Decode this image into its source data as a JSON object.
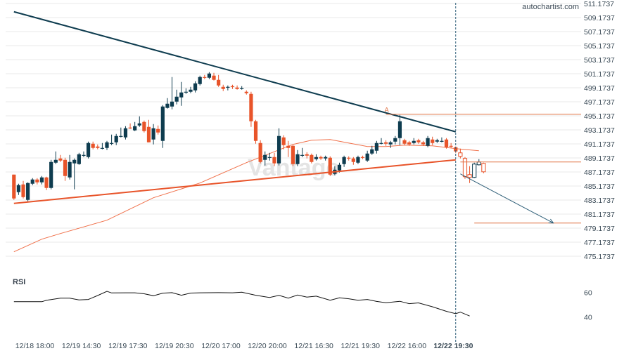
{
  "brand": "autochartist.com",
  "watermark": "Vantage",
  "rsi_label": "RSI",
  "colors": {
    "bull": "#0e3c4f",
    "bear": "#e8542a",
    "trend_upper": "#0e3c4f",
    "trend_lower": "#e8542a",
    "ma": "#f0704a",
    "level": "#e07040",
    "forecast": "#2f5f78",
    "rsi_line": "#111111",
    "axis_text": "#3a4a56",
    "grid": "#e9e9e9"
  },
  "chart_data": [
    {
      "type": "candlestick",
      "title": "",
      "ylim": [
        473.1737,
        511.1737
      ],
      "y_ticks": [
        "511.1737",
        "509.1737",
        "507.1737",
        "505.1737",
        "503.1737",
        "501.1737",
        "499.1737",
        "497.1737",
        "495.1737",
        "493.1737",
        "491.1737",
        "489.1737",
        "487.1737",
        "485.1737",
        "483.1737",
        "481.1737",
        "479.1737",
        "477.1737",
        "475.1737"
      ],
      "x_ticks": [
        {
          "label": "12/18 18:00",
          "bar": 4.5
        },
        {
          "label": "12/19 14:30",
          "bar": 14.5
        },
        {
          "label": "12/19 17:30",
          "bar": 24.5
        },
        {
          "label": "12/19 20:30",
          "bar": 34.5
        },
        {
          "label": "12/20 17:00",
          "bar": 44.5
        },
        {
          "label": "12/20 20:00",
          "bar": 54.5
        },
        {
          "label": "12/21 16:30",
          "bar": 64.5
        },
        {
          "label": "12/21 19:30",
          "bar": 74.5
        },
        {
          "label": "12/22 16:00",
          "bar": 84.5
        },
        {
          "label": "12/22 19:30",
          "bar": 94.5,
          "bold": true
        }
      ],
      "candles": [
        [
          486.8,
          483.4,
          486.8,
          483.2
        ],
        [
          484.3,
          485.3,
          485.5,
          483.9
        ],
        [
          485.4,
          483.6,
          485.9,
          483.4
        ],
        [
          483.2,
          485.6,
          485.7,
          483.0
        ],
        [
          485.5,
          486.1,
          486.3,
          485.3
        ],
        [
          486.1,
          485.7,
          486.3,
          485.4
        ],
        [
          485.7,
          486.4,
          486.6,
          485.4
        ],
        [
          486.4,
          484.9,
          486.5,
          484.6
        ],
        [
          484.9,
          488.6,
          488.9,
          484.7
        ],
        [
          488.5,
          488.9,
          490.1,
          488.3
        ],
        [
          489.1,
          488.8,
          489.6,
          488.6
        ],
        [
          488.9,
          486.6,
          489.2,
          485.9
        ],
        [
          486.4,
          488.6,
          489.6,
          486.1
        ],
        [
          488.4,
          488.9,
          489.1,
          484.7
        ],
        [
          488.3,
          489.7,
          489.9,
          488.2
        ],
        [
          489.6,
          489.6,
          490.1,
          489.3
        ],
        [
          489.3,
          491.3,
          491.5,
          489.1
        ],
        [
          491.2,
          490.6,
          491.5,
          490.4
        ],
        [
          490.8,
          490.6,
          491.1,
          490.4
        ],
        [
          490.6,
          490.6,
          491.3,
          490.4
        ],
        [
          490.6,
          491.4,
          491.6,
          490.3
        ],
        [
          491.2,
          491.3,
          492.5,
          491.0
        ],
        [
          491.4,
          492.3,
          492.6,
          491.0
        ],
        [
          492.3,
          492.3,
          493.5,
          492.1
        ],
        [
          492.1,
          493.4,
          493.7,
          491.8
        ],
        [
          493.5,
          493.4,
          494.1,
          493.3
        ],
        [
          493.1,
          493.7,
          494.3,
          493.0
        ],
        [
          493.8,
          494.1,
          495.1,
          493.6
        ],
        [
          494.3,
          493.0,
          494.5,
          492.8
        ],
        [
          493.6,
          491.4,
          494.6,
          491.4
        ],
        [
          491.8,
          493.4,
          494.0,
          491.1
        ],
        [
          493.3,
          492.8,
          493.8,
          492.5
        ],
        [
          491.6,
          496.5,
          496.7,
          490.6
        ],
        [
          496.3,
          496.9,
          497.7,
          496.2
        ],
        [
          496.5,
          497.2,
          500.7,
          496.1
        ],
        [
          497.2,
          497.9,
          498.9,
          496.8
        ],
        [
          497.8,
          498.5,
          500.0,
          496.6
        ],
        [
          498.6,
          498.6,
          499.1,
          498.3
        ],
        [
          498.6,
          498.9,
          499.3,
          498.4
        ],
        [
          498.8,
          499.8,
          500.1,
          498.5
        ],
        [
          499.7,
          500.7,
          500.9,
          499.5
        ],
        [
          500.7,
          500.6,
          501.0,
          500.4
        ],
        [
          500.6,
          501.2,
          501.4,
          500.4
        ],
        [
          500.9,
          500.3,
          501.3,
          500.2
        ],
        [
          500.3,
          499.5,
          501.0,
          499.3
        ],
        [
          499.3,
          499.0,
          499.6,
          498.7
        ],
        [
          499.3,
          499.3,
          499.5,
          498.8
        ],
        [
          499.4,
          499.3,
          499.6,
          499.0
        ],
        [
          499.2,
          499.0,
          499.5,
          498.9
        ],
        [
          499.1,
          499.1,
          499.4,
          498.9
        ],
        [
          498.6,
          498.4,
          498.8,
          498.2
        ],
        [
          498.3,
          494.4,
          498.6,
          493.6
        ],
        [
          494.4,
          491.6,
          494.6,
          491.2
        ],
        [
          491.3,
          488.6,
          491.7,
          488.4
        ],
        [
          488.9,
          489.6,
          490.1,
          488.1
        ],
        [
          489.3,
          489.3,
          489.9,
          488.8
        ],
        [
          489.3,
          488.4,
          489.9,
          488.0
        ],
        [
          488.4,
          492.3,
          493.4,
          488.1
        ],
        [
          492.1,
          491.0,
          492.4,
          490.4
        ],
        [
          490.9,
          490.6,
          491.6,
          489.3
        ],
        [
          490.9,
          488.3,
          491.0,
          488.0
        ],
        [
          488.3,
          489.7,
          490.3,
          488.0
        ],
        [
          489.6,
          489.6,
          490.6,
          489.3
        ],
        [
          489.7,
          489.5,
          490.0,
          489.1
        ],
        [
          489.6,
          488.6,
          489.8,
          488.4
        ],
        [
          489.0,
          489.3,
          489.7,
          488.8
        ],
        [
          489.3,
          489.1,
          489.5,
          488.9
        ],
        [
          489.1,
          489.3,
          489.5,
          488.8
        ],
        [
          489.2,
          486.8,
          489.4,
          486.6
        ],
        [
          486.9,
          487.5,
          488.0,
          486.7
        ],
        [
          487.4,
          488.2,
          488.5,
          487.1
        ],
        [
          488.3,
          489.3,
          489.5,
          487.9
        ],
        [
          489.2,
          489.1,
          489.4,
          488.8
        ],
        [
          489.1,
          488.6,
          489.3,
          488.2
        ],
        [
          488.5,
          489.3,
          489.5,
          488.3
        ],
        [
          489.3,
          489.2,
          489.5,
          489.0
        ],
        [
          488.8,
          489.8,
          490.2,
          488.6
        ],
        [
          489.8,
          490.4,
          490.9,
          489.6
        ],
        [
          490.2,
          491.3,
          491.6,
          489.8
        ],
        [
          491.3,
          491.3,
          492.0,
          491.1
        ],
        [
          491.4,
          491.2,
          491.7,
          490.9
        ],
        [
          491.1,
          491.4,
          491.6,
          490.6
        ],
        [
          491.5,
          492.0,
          492.3,
          491.1
        ],
        [
          492.0,
          494.4,
          495.3,
          491.0
        ],
        [
          491.7,
          491.2,
          491.9,
          491.0
        ],
        [
          491.4,
          491.1,
          491.6,
          490.9
        ],
        [
          491.3,
          491.6,
          492.0,
          491.1
        ],
        [
          491.7,
          491.4,
          491.9,
          491.2
        ],
        [
          491.4,
          491.1,
          491.6,
          490.9
        ],
        [
          490.9,
          492.0,
          492.3,
          490.7
        ],
        [
          491.8,
          491.3,
          492.2,
          491.0
        ],
        [
          491.5,
          491.7,
          491.9,
          491.3
        ],
        [
          491.6,
          491.6,
          492.1,
          491.4
        ],
        [
          491.8,
          490.7,
          492.0,
          490.5
        ],
        [
          490.9,
          490.8,
          491.3,
          490.6
        ],
        [
          490.7,
          490.1,
          490.8,
          489.9
        ],
        [
          489.9,
          489.4,
          490.5,
          489.1
        ],
        [
          489.1,
          486.5,
          489.3,
          486.2
        ],
        [
          486.8,
          486.4,
          488.0,
          485.6
        ],
        [
          486.4,
          488.3,
          488.5,
          486.3
        ],
        [
          488.2,
          488.6,
          489.0,
          488.1
        ],
        [
          488.4,
          487.2,
          488.5,
          487.0
        ]
      ],
      "moving_average": [
        [
          0,
          475.8
        ],
        [
          6,
          477.6
        ],
        [
          10,
          478.4
        ],
        [
          20,
          480.3
        ],
        [
          30,
          483.5
        ],
        [
          40,
          485.6
        ],
        [
          50,
          488.5
        ],
        [
          60,
          491.1
        ],
        [
          64,
          491.7
        ],
        [
          68,
          491.8
        ],
        [
          72,
          491.3
        ],
        [
          76,
          490.8
        ],
        [
          80,
          490.8
        ],
        [
          84,
          491.0
        ],
        [
          90,
          490.9
        ],
        [
          95,
          490.5
        ],
        [
          100,
          490.2
        ]
      ],
      "trendline_upper": {
        "from": [
          0,
          510.0
        ],
        "to": [
          95,
          492.9
        ]
      },
      "trendline_lower": {
        "from": [
          0,
          482.7
        ],
        "to": [
          95,
          488.9
        ]
      },
      "level_a": {
        "label": "A",
        "price": 495.4,
        "from_bar": 80
      },
      "resistance_level": {
        "price": 488.6,
        "from_bar": 96
      },
      "target_level": {
        "price": 479.9,
        "from_bar": 99
      },
      "forecast_arrow": {
        "from": [
          96,
          486.9
        ],
        "to": [
          116,
          479.9
        ]
      },
      "current_bar": 95
    },
    {
      "type": "line",
      "title": "RSI",
      "ylim": [
        25,
        75
      ],
      "y_ticks": [
        "60",
        "40"
      ],
      "series": [
        {
          "values": [
            [
              0,
              52.4
            ],
            [
              6,
              52.4
            ],
            [
              7,
              53.5
            ],
            [
              10,
              55.3
            ],
            [
              12,
              55.2
            ],
            [
              14,
              53.8
            ],
            [
              16,
              54.2
            ],
            [
              18,
              57.4
            ],
            [
              20,
              60.8
            ],
            [
              21,
              59.5
            ],
            [
              24,
              59.6
            ],
            [
              26,
              59.6
            ],
            [
              28,
              58.8
            ],
            [
              30,
              57.2
            ],
            [
              32,
              59.3
            ],
            [
              34,
              59.7
            ],
            [
              36,
              57.6
            ],
            [
              38,
              59.4
            ],
            [
              40,
              59.6
            ],
            [
              44,
              59.7
            ],
            [
              47,
              59.6
            ],
            [
              49,
              60.1
            ],
            [
              52,
              57.6
            ],
            [
              55,
              55.8
            ],
            [
              57,
              57.5
            ],
            [
              59,
              55.3
            ],
            [
              61,
              57.8
            ],
            [
              63,
              56.1
            ],
            [
              65,
              56.9
            ],
            [
              68,
              53.6
            ],
            [
              70,
              55.5
            ],
            [
              72,
              54.8
            ],
            [
              74,
              53.6
            ],
            [
              76,
              54.2
            ],
            [
              78,
              52.6
            ],
            [
              80,
              51.6
            ],
            [
              83,
              52.7
            ],
            [
              85,
              50.8
            ],
            [
              87,
              51.4
            ],
            [
              90,
              48.3
            ],
            [
              93,
              44.6
            ],
            [
              95,
              42.7
            ],
            [
              96,
              44.0
            ],
            [
              98,
              40.8
            ]
          ]
        }
      ]
    }
  ]
}
